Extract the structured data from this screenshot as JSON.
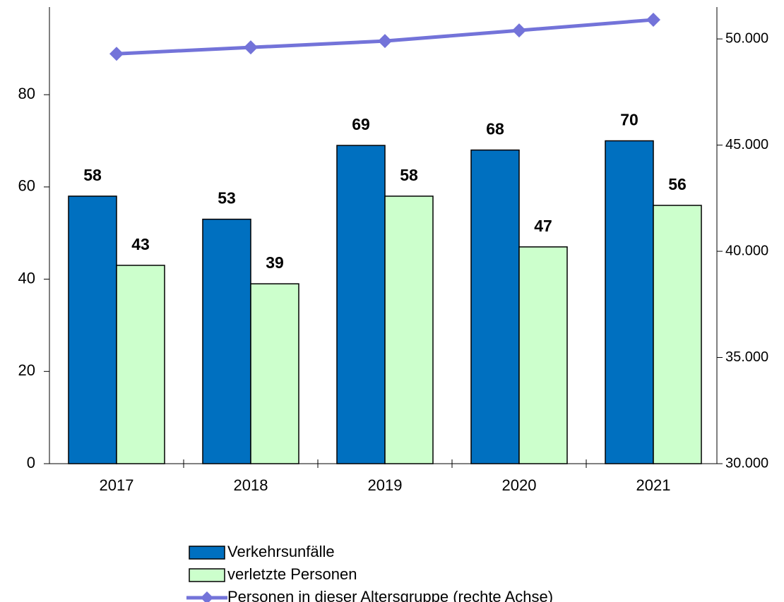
{
  "chart_data": {
    "type": "bar",
    "categories": [
      "2017",
      "2018",
      "2019",
      "2020",
      "2021"
    ],
    "series": [
      {
        "name": "Verkehrsunfälle",
        "color": "#0070c0",
        "values": [
          58,
          53,
          69,
          68,
          70
        ]
      },
      {
        "name": "verletzte Personen",
        "color": "#ccffcc",
        "values": [
          43,
          39,
          58,
          47,
          56
        ]
      },
      {
        "name": "Personen in dieser Altersgruppe (rechte Achse)",
        "color": "#7373d9",
        "type": "line",
        "axis": "y2",
        "values": [
          49300,
          49600,
          49900,
          50400,
          50900
        ]
      }
    ],
    "ylim": [
      0,
      99
    ],
    "yticks": [
      0,
      20,
      40,
      60,
      80
    ],
    "y2lim": [
      30000,
      51500
    ],
    "y2ticks": [
      {
        "value": 30000,
        "label": "30.000"
      },
      {
        "value": 35000,
        "label": "35.000"
      },
      {
        "value": 40000,
        "label": "40.000"
      },
      {
        "value": 45000,
        "label": "45.000"
      },
      {
        "value": 50000,
        "label": "50.000"
      }
    ]
  }
}
